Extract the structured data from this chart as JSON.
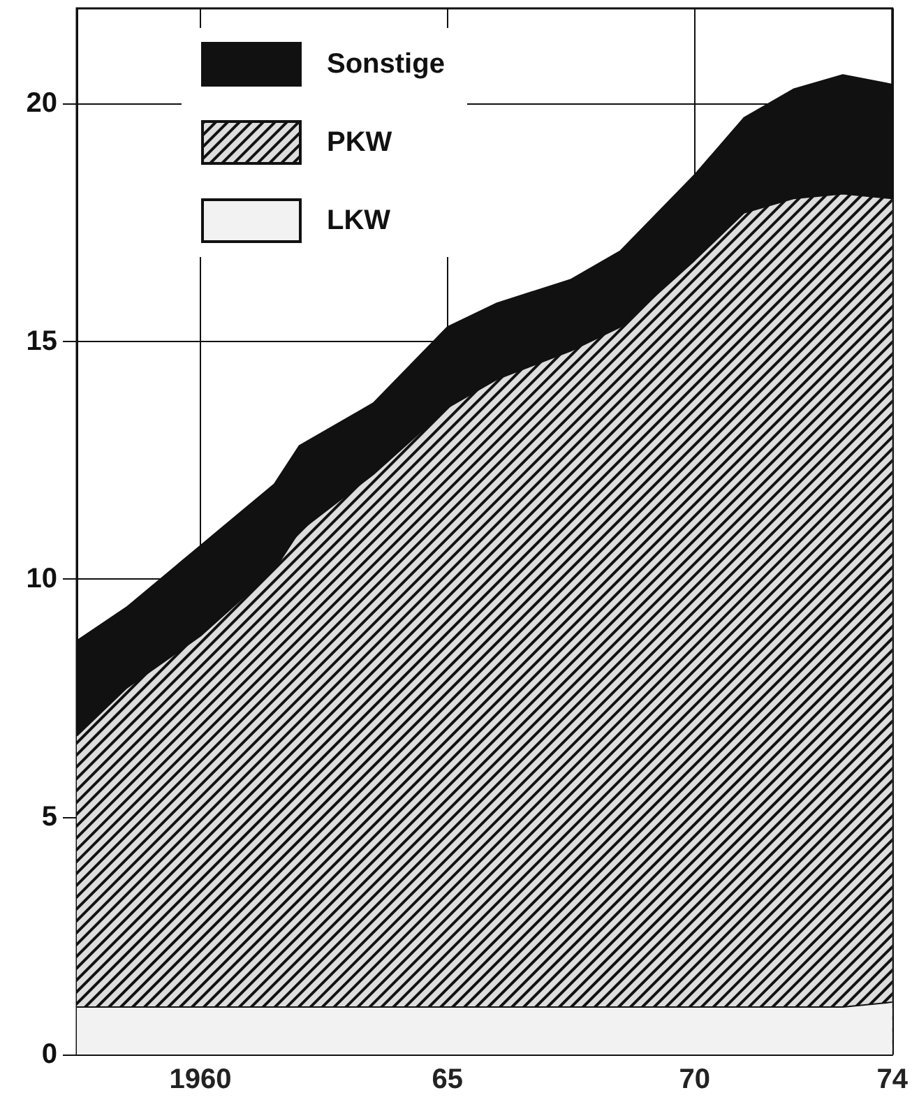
{
  "chart_data": {
    "type": "area",
    "stacked": true,
    "x": [
      1957.5,
      1958.5,
      1960,
      1961.5,
      1962,
      1963.5,
      1965,
      1966,
      1967.5,
      1968.5,
      1970,
      1971,
      1972,
      1973,
      1974
    ],
    "series": [
      {
        "name": "LKW",
        "color": "#f2f2f2",
        "values": [
          1,
          1,
          1,
          1,
          1,
          1,
          1,
          1,
          1,
          1,
          1,
          1,
          1,
          1,
          1.1
        ]
      },
      {
        "name": "PKW",
        "color": "#dddddd",
        "values": [
          5.7,
          6.7,
          7.8,
          9.2,
          10.0,
          11.2,
          12.6,
          13.2,
          13.8,
          14.3,
          15.7,
          16.7,
          17.0,
          17.1,
          16.9
        ]
      },
      {
        "name": "Sonstige",
        "color": "#111111",
        "values": [
          2.0,
          1.7,
          1.9,
          1.8,
          1.8,
          1.5,
          1.7,
          1.6,
          1.5,
          1.6,
          1.8,
          2.0,
          2.3,
          2.5,
          2.4
        ]
      }
    ],
    "xlim": [
      1957.5,
      1974
    ],
    "xticks": [
      {
        "value": 1960,
        "label": "1960"
      },
      {
        "value": 1965,
        "label": "65"
      },
      {
        "value": 1970,
        "label": "70"
      },
      {
        "value": 1974,
        "label": "74"
      }
    ],
    "ylim": [
      0,
      22
    ],
    "yticks": [
      0,
      5,
      10,
      15,
      20
    ],
    "grid": true,
    "legend": "top left"
  }
}
